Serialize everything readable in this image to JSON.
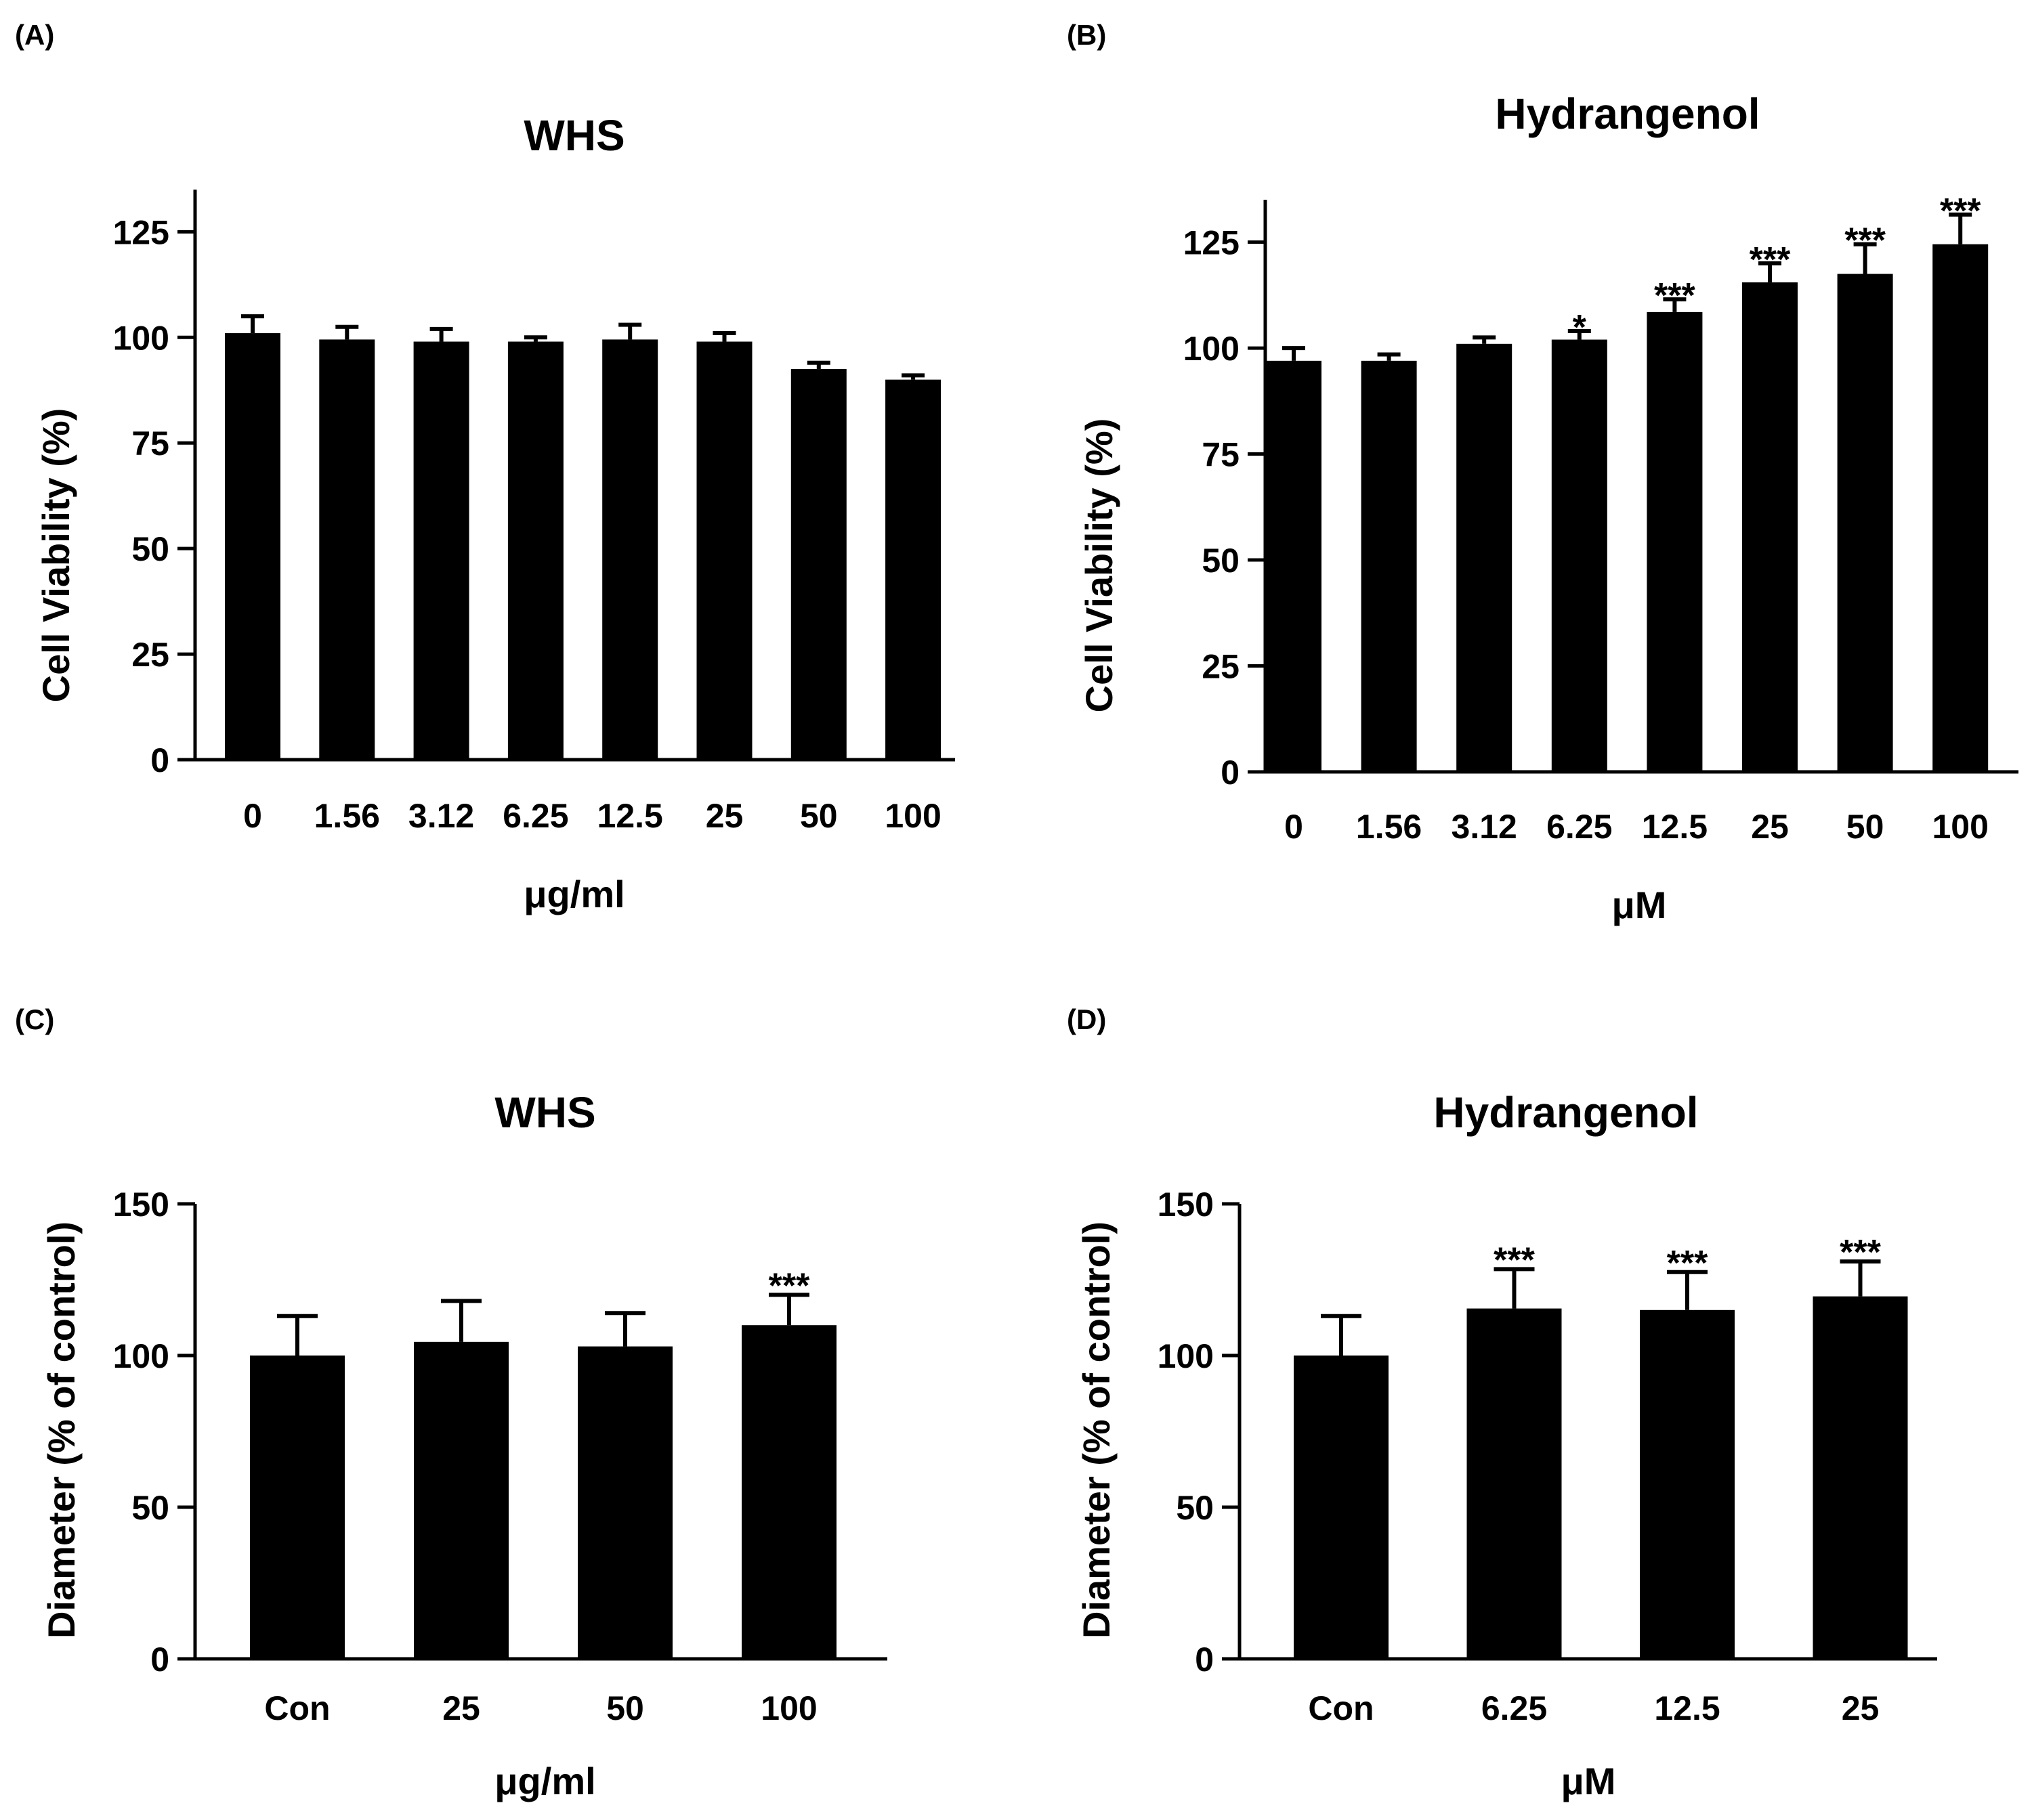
{
  "chart_data": [
    {
      "panel": "(A)",
      "type": "bar",
      "title": "WHS",
      "xlabel": "μg/ml",
      "ylabel": "Cell Viability (%)",
      "ylim": [
        0,
        135
      ],
      "yticks": [
        0,
        25,
        50,
        75,
        100,
        125
      ],
      "categories": [
        "0",
        "1.56",
        "3.12",
        "6.25",
        "12.5",
        "25",
        "50",
        "100"
      ],
      "values": [
        101,
        99.5,
        99,
        99,
        99.5,
        99,
        92.5,
        90
      ],
      "errors": [
        4,
        3,
        3,
        1,
        3.5,
        2,
        1.5,
        1
      ],
      "significance": [
        "",
        "",
        "",
        "",
        "",
        "",
        "",
        ""
      ]
    },
    {
      "panel": "(B)",
      "type": "bar",
      "title": "Hydrangenol",
      "xlabel": "μM",
      "ylabel": "Cell Viability (%)",
      "ylim": [
        0,
        135
      ],
      "yticks": [
        0,
        25,
        50,
        75,
        100,
        125
      ],
      "categories": [
        "0",
        "1.56",
        "3.12",
        "6.25",
        "12.5",
        "25",
        "50",
        "100"
      ],
      "values": [
        97,
        97,
        101,
        102,
        108.5,
        115.5,
        117.5,
        124.5
      ],
      "errors": [
        3,
        1.5,
        1.5,
        2,
        3,
        4.5,
        7,
        7
      ],
      "significance": [
        "",
        "",
        "",
        "*",
        "***",
        "***",
        "***",
        "***"
      ]
    },
    {
      "panel": "(C)",
      "type": "bar",
      "title": "WHS",
      "xlabel": "μg/ml",
      "ylabel": "Diameter (% of control)",
      "ylim": [
        0,
        150
      ],
      "yticks": [
        0,
        50,
        100,
        150
      ],
      "categories": [
        "Con",
        "25",
        "50",
        "100"
      ],
      "values": [
        100,
        104.5,
        103,
        110
      ],
      "errors": [
        13,
        13.5,
        11,
        10
      ],
      "significance": [
        "",
        "",
        "",
        "***"
      ]
    },
    {
      "panel": "(D)",
      "type": "bar",
      "title": "Hydrangenol",
      "xlabel": "μM",
      "ylabel": "Diameter (% of control)",
      "ylim": [
        0,
        150
      ],
      "yticks": [
        0,
        50,
        100,
        150
      ],
      "categories": [
        "Con",
        "6.25",
        "12.5",
        "25"
      ],
      "values": [
        100,
        115.5,
        115,
        119.5
      ],
      "errors": [
        13,
        13,
        12.5,
        11.5
      ],
      "significance": [
        "",
        "***",
        "***",
        "***"
      ]
    }
  ]
}
